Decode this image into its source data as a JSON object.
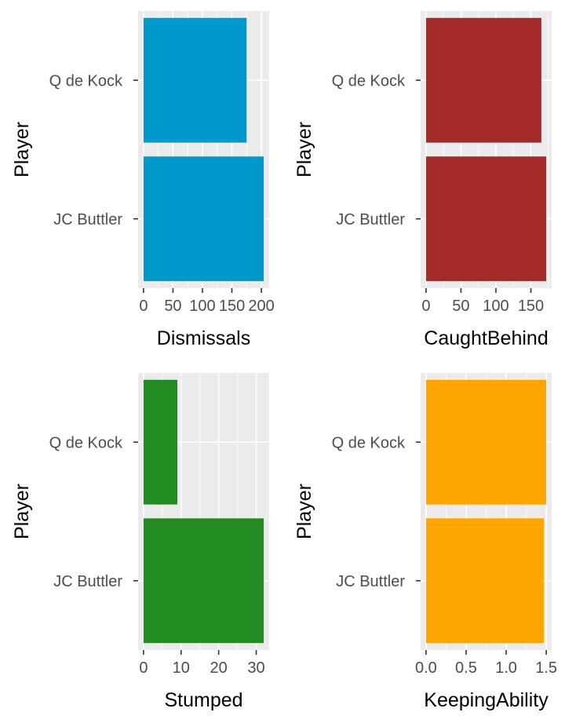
{
  "chart_data": [
    {
      "type": "bar",
      "orientation": "horizontal",
      "categories": [
        "Q de Kock",
        "JC Buttler"
      ],
      "values": [
        175,
        204
      ],
      "xlabel": "Dismissals",
      "ylabel": "Player",
      "xlim": [
        0,
        204
      ],
      "xticks": [
        0,
        50,
        100,
        150,
        200
      ],
      "xtick_labels": [
        "0",
        "50",
        "100",
        "150",
        "200"
      ],
      "color": "#0099cc",
      "grid": true
    },
    {
      "type": "bar",
      "orientation": "horizontal",
      "categories": [
        "Q de Kock",
        "JC Buttler"
      ],
      "values": [
        165,
        172
      ],
      "xlabel": "CaughtBehind",
      "ylabel": "Player",
      "xlim": [
        0,
        172
      ],
      "xticks": [
        0,
        50,
        100,
        150
      ],
      "xtick_labels": [
        "0",
        "50",
        "100",
        "150"
      ],
      "color": "#a52a2a",
      "grid": true
    },
    {
      "type": "bar",
      "orientation": "horizontal",
      "categories": [
        "Q de Kock",
        "JC Buttler"
      ],
      "values": [
        9,
        32
      ],
      "xlabel": "Stumped",
      "ylabel": "Player",
      "xlim": [
        0,
        32
      ],
      "xticks": [
        0,
        10,
        20,
        30
      ],
      "xtick_labels": [
        "0",
        "10",
        "20",
        "30"
      ],
      "color": "#228b22",
      "grid": true
    },
    {
      "type": "bar",
      "orientation": "horizontal",
      "categories": [
        "Q de Kock",
        "JC Buttler"
      ],
      "values": [
        1.5,
        1.47
      ],
      "xlabel": "KeepingAbility",
      "ylabel": "Player",
      "xlim": [
        0,
        1.5
      ],
      "xticks": [
        0,
        0.5,
        1,
        1.5
      ],
      "xtick_labels": [
        "0.0",
        "0.5",
        "1.0",
        "1.5"
      ],
      "color": "#ffa500",
      "grid": true
    }
  ]
}
